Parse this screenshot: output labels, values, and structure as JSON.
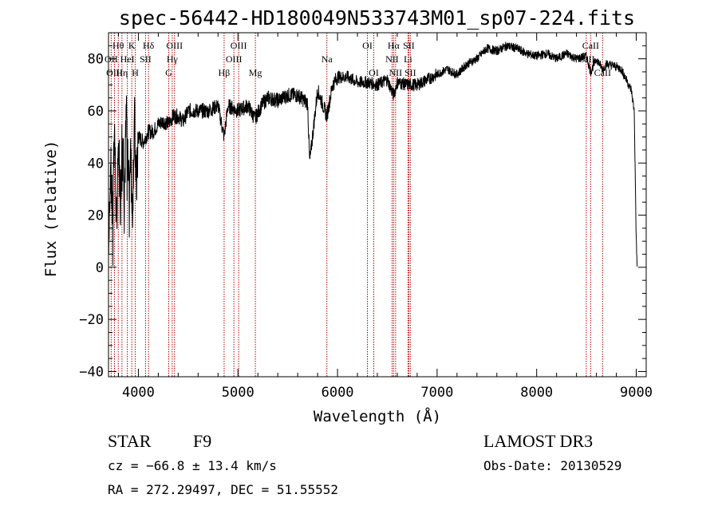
{
  "chart_data": {
    "type": "line",
    "title": "spec-56442-HD180049N533743M01_sp07-224.fits",
    "xlabel": "Wavelength (Å)",
    "ylabel": "Flux (relative)",
    "xlim": [
      3700,
      9100
    ],
    "ylim": [
      -42,
      90
    ],
    "xticks": [
      4000,
      5000,
      6000,
      7000,
      8000,
      9000
    ],
    "xtick_labels": [
      "4000",
      "5000",
      "6000",
      "7000",
      "8000",
      "9000"
    ],
    "yticks": [
      -40,
      -20,
      0,
      20,
      40,
      60,
      80
    ],
    "ytick_labels": [
      "−40",
      "−20",
      "0",
      "20",
      "40",
      "60",
      "80"
    ],
    "series": [
      {
        "name": "flux",
        "x": [
          3700,
          3720,
          3740,
          3760,
          3780,
          3800,
          3820,
          3840,
          3860,
          3880,
          3900,
          3920,
          3940,
          3960,
          3980,
          4000,
          4050,
          4100,
          4150,
          4200,
          4250,
          4300,
          4350,
          4400,
          4450,
          4500,
          4600,
          4700,
          4800,
          4861,
          4900,
          5000,
          5100,
          5170,
          5250,
          5300,
          5400,
          5500,
          5600,
          5700,
          5720,
          5800,
          5893,
          5950,
          6000,
          6100,
          6200,
          6300,
          6400,
          6500,
          6563,
          6600,
          6700,
          6800,
          6900,
          7000,
          7100,
          7200,
          7300,
          7400,
          7500,
          7600,
          7700,
          7800,
          7900,
          8000,
          8100,
          8200,
          8300,
          8400,
          8500,
          8542,
          8600,
          8662,
          8700,
          8800,
          8850,
          8900,
          8950,
          8980,
          9000,
          9010
        ],
        "y": [
          10,
          40,
          20,
          55,
          15,
          50,
          25,
          58,
          30,
          60,
          35,
          45,
          20,
          58,
          30,
          50,
          48,
          52,
          52,
          55,
          56,
          55,
          58,
          58,
          56,
          60,
          60,
          60,
          62,
          50,
          62,
          60,
          62,
          57,
          63,
          65,
          64,
          66,
          66,
          63,
          40,
          68,
          58,
          70,
          73,
          73,
          71,
          71,
          70,
          72,
          66,
          71,
          70,
          70,
          72,
          74,
          76,
          74,
          78,
          80,
          84,
          83,
          85,
          84,
          82,
          81,
          82,
          80,
          82,
          80,
          81,
          75,
          80,
          76,
          78,
          77,
          76,
          72,
          68,
          60,
          10,
          0
        ]
      }
    ],
    "line_markers": [
      {
        "label": "Hθ",
        "wavelength": 3798,
        "row": 1
      },
      {
        "label": "OII",
        "wavelength": 3727,
        "row": 2
      },
      {
        "label": "OIII",
        "wavelength": 3760,
        "row": 3
      },
      {
        "label": "K",
        "wavelength": 3934,
        "row": 1
      },
      {
        "label": "HeI",
        "wavelength": 3889,
        "row": 2
      },
      {
        "label": "Hη",
        "wavelength": 3835,
        "row": 3
      },
      {
        "label": "H",
        "wavelength": 3969,
        "row": 3
      },
      {
        "label": "Hδ",
        "wavelength": 4102,
        "row": 1
      },
      {
        "label": "SII",
        "wavelength": 4072,
        "row": 2
      },
      {
        "label": "OIII",
        "wavelength": 4363,
        "row": 1
      },
      {
        "label": "Hγ",
        "wavelength": 4340,
        "row": 2
      },
      {
        "label": "G",
        "wavelength": 4305,
        "row": 3
      },
      {
        "label": "Hβ",
        "wavelength": 4861,
        "row": 3
      },
      {
        "label": "OIII",
        "wavelength": 5007,
        "row": 1
      },
      {
        "label": "OIII",
        "wavelength": 4959,
        "row": 2
      },
      {
        "label": "Mg",
        "wavelength": 5175,
        "row": 3
      },
      {
        "label": "Na",
        "wavelength": 5893,
        "row": 2
      },
      {
        "label": "OI",
        "wavelength": 6300,
        "row": 1
      },
      {
        "label": "OI",
        "wavelength": 6364,
        "row": 3
      },
      {
        "label": "Hα",
        "wavelength": 6563,
        "row": 1
      },
      {
        "label": "SII",
        "wavelength": 6716,
        "row": 1
      },
      {
        "label": "NII",
        "wavelength": 6548,
        "row": 2
      },
      {
        "label": "Li",
        "wavelength": 6708,
        "row": 2
      },
      {
        "label": "NII",
        "wavelength": 6583,
        "row": 3
      },
      {
        "label": "SII",
        "wavelength": 6731,
        "row": 3
      },
      {
        "label": "CaII",
        "wavelength": 8542,
        "row": 1
      },
      {
        "label": "CaII",
        "wavelength": 8498,
        "row": 2
      },
      {
        "label": "CaII",
        "wavelength": 8662,
        "row": 3
      }
    ]
  },
  "info": {
    "object_class": "STAR",
    "subclass": "F9",
    "survey": "LAMOST DR3",
    "cz": "cz = −66.8 ± 13.4 km/s",
    "obs_date": "Obs-Date: 20130529",
    "coords": "RA = 272.29497, DEC =  51.55552"
  }
}
